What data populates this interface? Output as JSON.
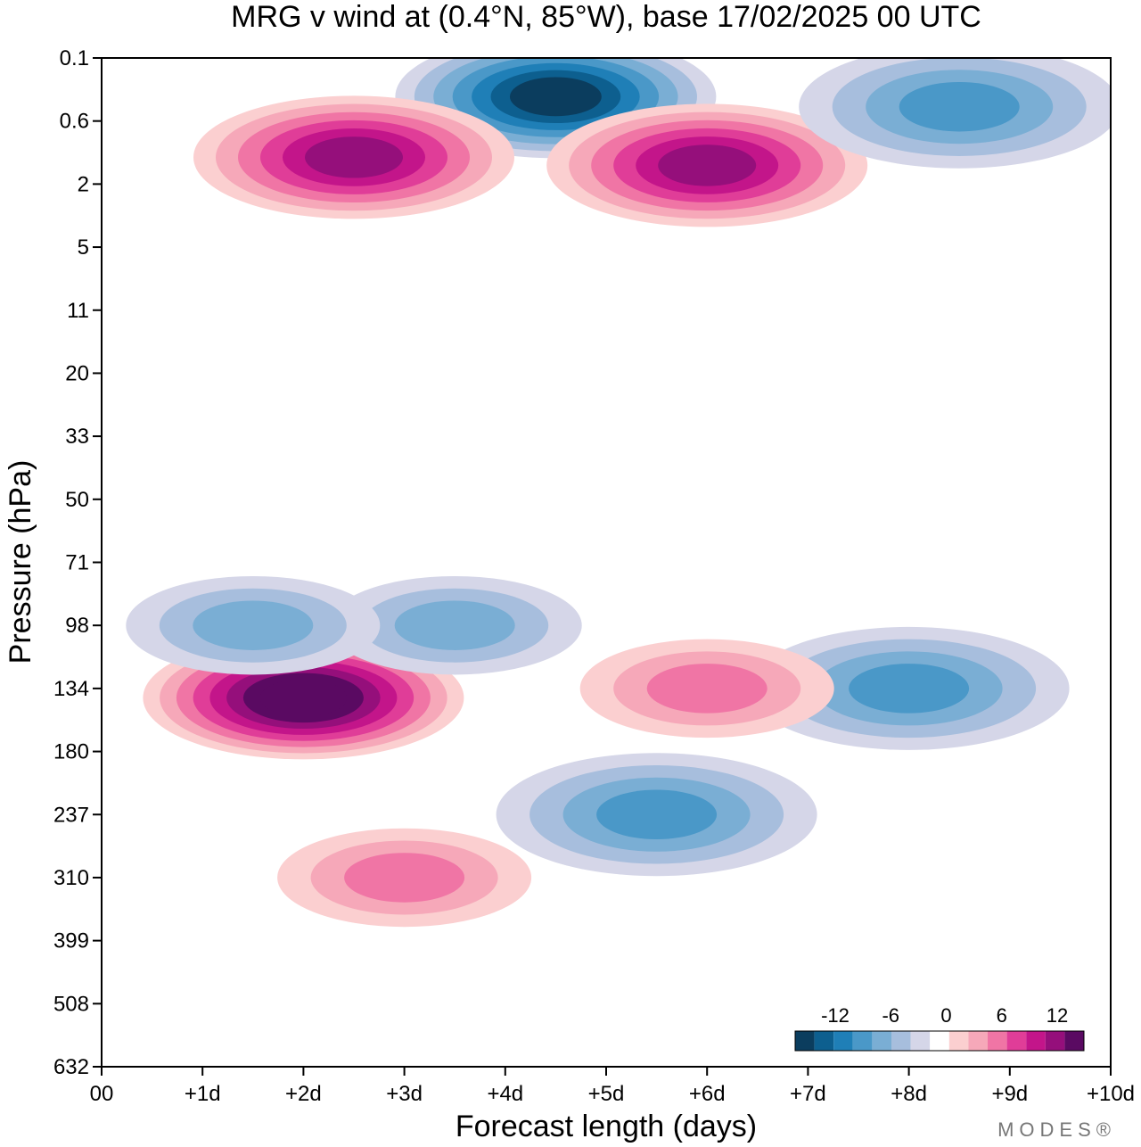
{
  "chart_data": {
    "type": "heatmap",
    "title": "MRG v wind at (0.4°N, 85°W),  base 17/02/2025  00 UTC",
    "xlabel": "Forecast length (days)",
    "ylabel": "Pressure (hPa)",
    "x_ticks": [
      "00",
      "+1d",
      "+2d",
      "+3d",
      "+4d",
      "+5d",
      "+6d",
      "+7d",
      "+8d",
      "+9d",
      "+10d"
    ],
    "y_ticks": [
      "0.1",
      "0.6",
      "2",
      "5",
      "11",
      "20",
      "33",
      "50",
      "71",
      "98",
      "134",
      "180",
      "237",
      "310",
      "399",
      "508",
      "632"
    ],
    "xlim": [
      0,
      10
    ],
    "ylim_hpa": [
      0.1,
      632
    ],
    "levels": [
      -16,
      -14,
      -12,
      -10,
      -8,
      -6,
      -4,
      -2,
      2,
      4,
      6,
      8,
      10,
      12,
      14,
      16
    ],
    "colorbar_labels": [
      "-12",
      "-6",
      "0",
      "6",
      "12"
    ],
    "colorbar_colors": [
      "#0b3d5e",
      "#0d5f8f",
      "#1f7fb7",
      "#4a98c8",
      "#7aaed4",
      "#a7bedd",
      "#d5d6e8",
      "#ffffff",
      "#fbcfd0",
      "#f6a8b9",
      "#f075a5",
      "#e03d98",
      "#c3158a",
      "#950f7b",
      "#5a0a62"
    ],
    "features": [
      {
        "day": 2.0,
        "pressure": 140,
        "value": 16
      },
      {
        "day": 3.0,
        "pressure": 310,
        "value": 6
      },
      {
        "day": 8.0,
        "pressure": 134,
        "value": -8
      },
      {
        "day": 5.5,
        "pressure": 237,
        "value": -8
      },
      {
        "day": 6.0,
        "pressure": 134,
        "value": 6
      },
      {
        "day": 4.5,
        "pressure": 0.3,
        "value": -14
      },
      {
        "day": 2.5,
        "pressure": 1.2,
        "value": 12
      },
      {
        "day": 6.0,
        "pressure": 1.4,
        "value": 12
      },
      {
        "day": 8.5,
        "pressure": 0.4,
        "value": -8
      },
      {
        "day": 3.5,
        "pressure": 98,
        "value": -6
      },
      {
        "day": 1.5,
        "pressure": 98,
        "value": -6
      }
    ]
  },
  "logo": "MODES®"
}
